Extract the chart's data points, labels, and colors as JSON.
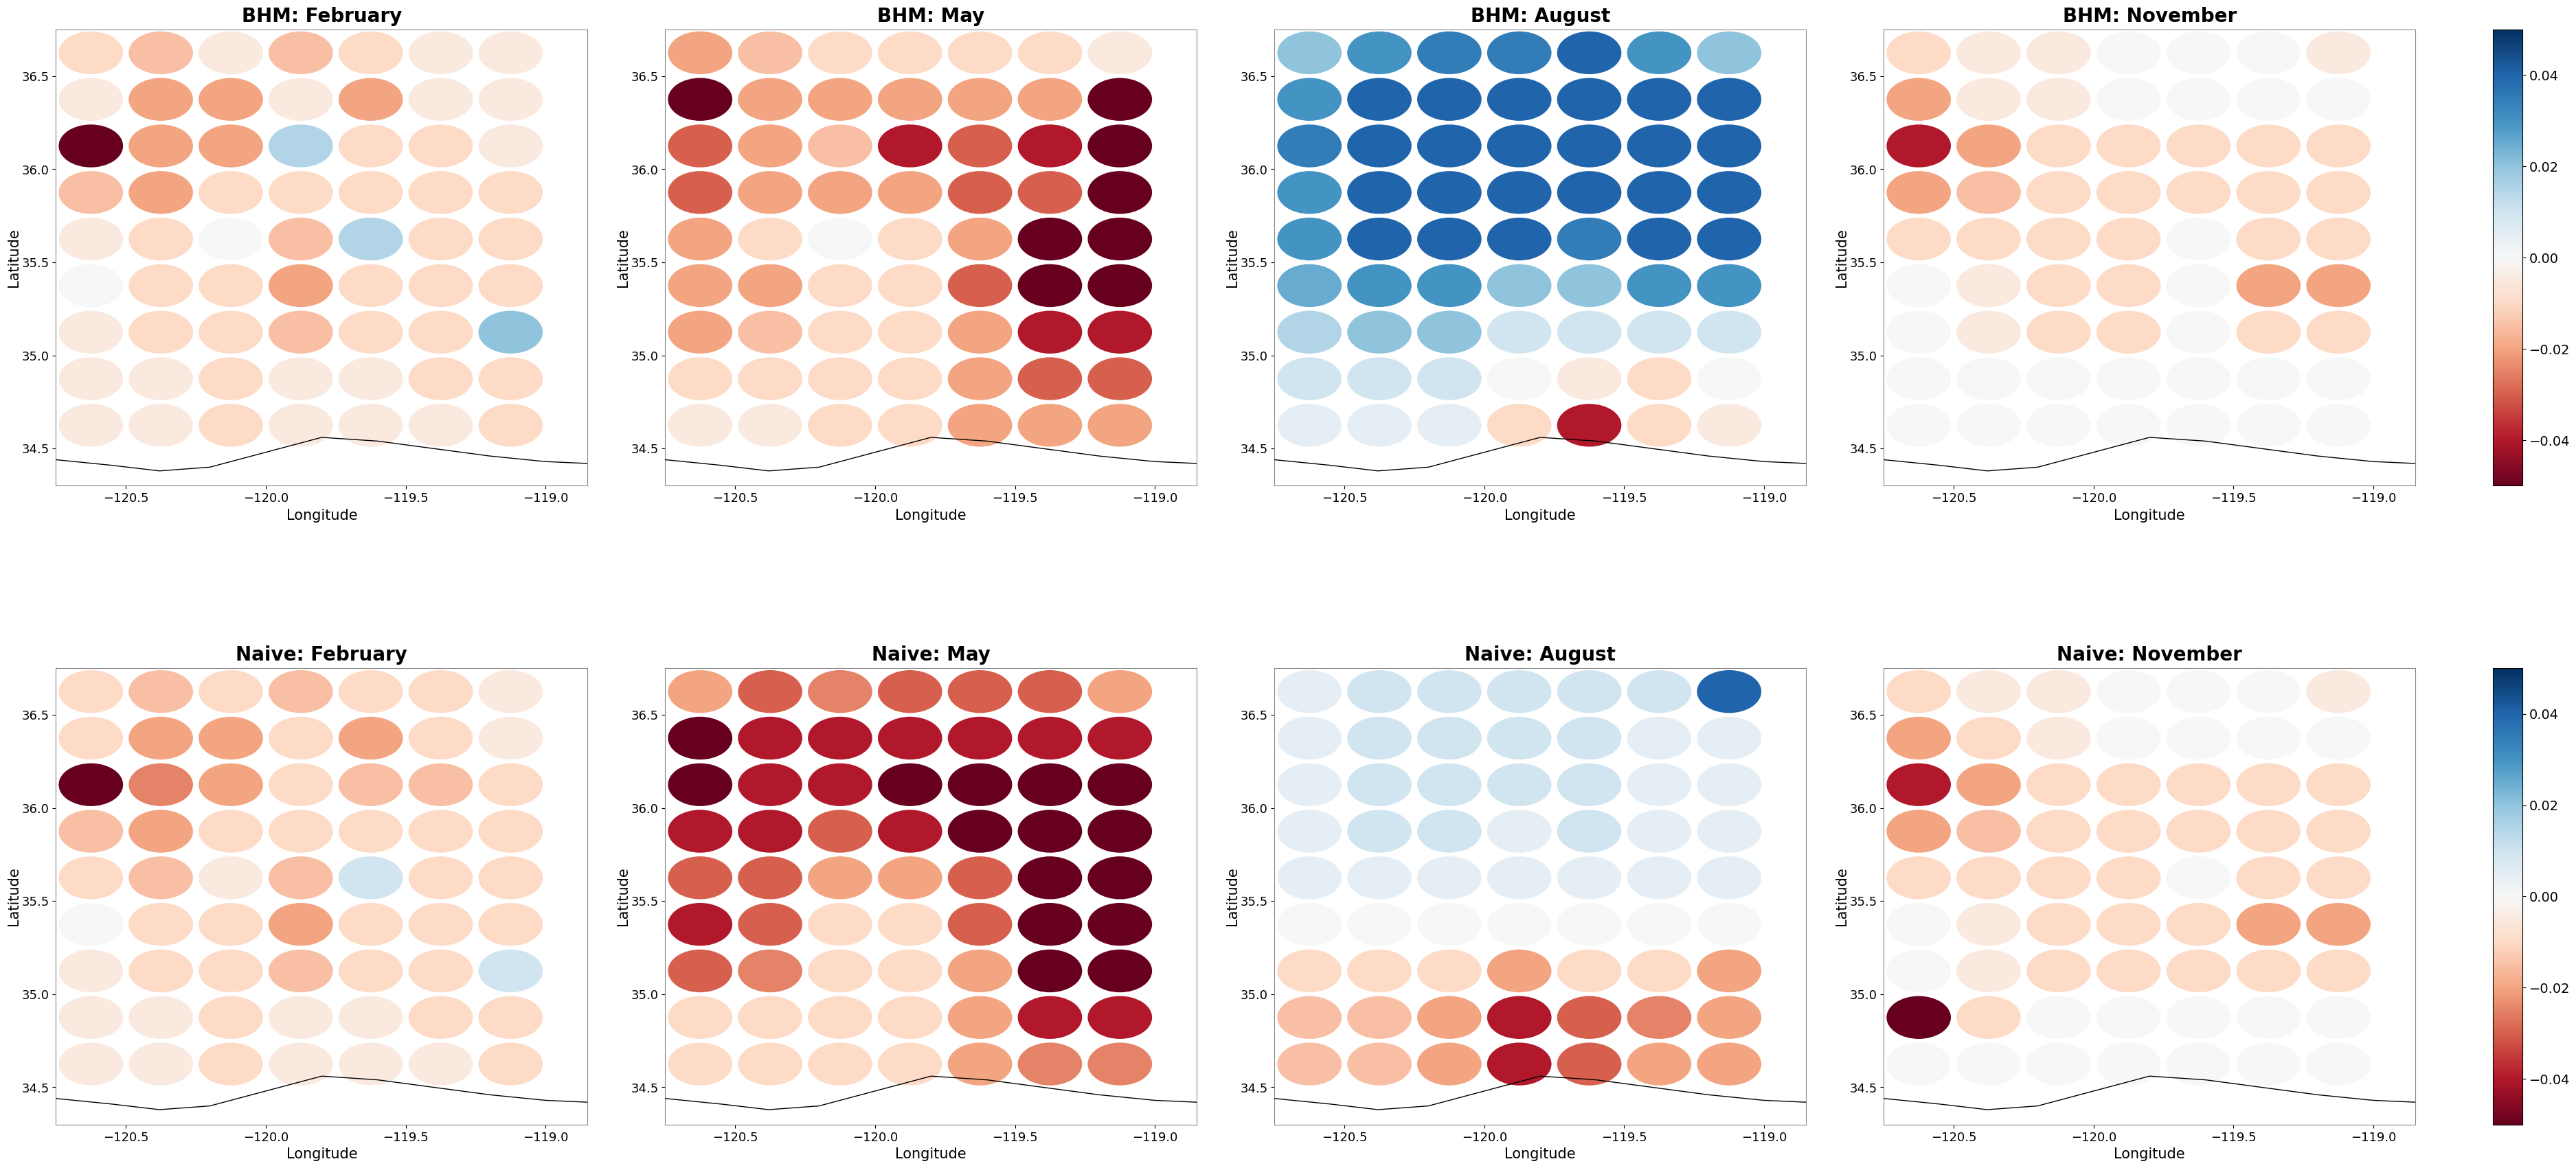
{
  "titles": [
    [
      "BHM: February",
      "BHM: May",
      "BHM: August",
      "BHM: November"
    ],
    [
      "Naive: February",
      "Naive: May",
      "Naive: August",
      "Naive: November"
    ]
  ],
  "lon_range": [
    -120.75,
    -118.85
  ],
  "lat_range": [
    34.3,
    36.75
  ],
  "lon_ticks": [
    -120.5,
    -120.0,
    -119.5,
    -119.0
  ],
  "lat_ticks": [
    34.5,
    35.0,
    35.5,
    36.0,
    36.5
  ],
  "xlabel": "Longitude",
  "ylabel": "Latitude",
  "vmin": -0.05,
  "vmax": 0.05,
  "cbar_ticks": [
    -0.04,
    -0.02,
    0.0,
    0.02,
    0.04
  ],
  "title_fontsize": 20,
  "label_fontsize": 15,
  "tick_fontsize": 13,
  "cbar_fontsize": 14,
  "coastline_x": [
    -120.75,
    -120.55,
    -120.38,
    -120.2,
    -120.0,
    -119.8,
    -119.6,
    -119.4,
    -119.2,
    -119.0,
    -118.85
  ],
  "coastline_y": [
    34.44,
    34.41,
    34.38,
    34.4,
    34.48,
    34.56,
    34.54,
    34.5,
    34.46,
    34.43,
    34.42
  ],
  "lons": [
    -120.625,
    -120.375,
    -120.125,
    -119.875,
    -119.625,
    -119.375,
    -119.125
  ],
  "lats": [
    36.625,
    36.375,
    36.125,
    35.875,
    35.625,
    35.375,
    35.125,
    34.875,
    34.625
  ],
  "bhm_feb": [
    [
      -0.01,
      -0.015,
      -0.005,
      -0.015,
      -0.01,
      -0.005,
      -0.005
    ],
    [
      -0.005,
      -0.02,
      -0.02,
      -0.005,
      -0.02,
      -0.005,
      -0.005
    ],
    [
      -0.05,
      -0.02,
      -0.02,
      0.015,
      -0.01,
      -0.01,
      -0.005
    ],
    [
      -0.015,
      -0.02,
      -0.01,
      -0.01,
      -0.01,
      -0.01,
      -0.01
    ],
    [
      -0.005,
      -0.01,
      0.0,
      -0.015,
      0.015,
      -0.01,
      -0.01
    ],
    [
      0.0,
      -0.01,
      -0.01,
      -0.02,
      -0.01,
      -0.01,
      -0.01
    ],
    [
      -0.005,
      -0.01,
      -0.01,
      -0.015,
      -0.01,
      -0.01,
      0.02
    ],
    [
      -0.005,
      -0.005,
      -0.01,
      -0.005,
      -0.005,
      -0.01,
      -0.01
    ],
    [
      -0.005,
      -0.005,
      -0.01,
      -0.005,
      -0.005,
      -0.005,
      -0.01
    ]
  ],
  "bhm_may": [
    [
      -0.02,
      -0.015,
      -0.01,
      -0.01,
      -0.01,
      -0.01,
      -0.005
    ],
    [
      -0.05,
      -0.02,
      -0.02,
      -0.02,
      -0.02,
      -0.02,
      -0.05
    ],
    [
      -0.03,
      -0.02,
      -0.015,
      -0.04,
      -0.03,
      -0.04,
      -0.06
    ],
    [
      -0.03,
      -0.02,
      -0.02,
      -0.02,
      -0.03,
      -0.03,
      -0.06
    ],
    [
      -0.02,
      -0.01,
      0.0,
      -0.01,
      -0.02,
      -0.05,
      -0.05
    ],
    [
      -0.02,
      -0.02,
      -0.01,
      -0.01,
      -0.03,
      -0.06,
      -0.06
    ],
    [
      -0.02,
      -0.015,
      -0.01,
      -0.01,
      -0.02,
      -0.04,
      -0.04
    ],
    [
      -0.01,
      -0.01,
      -0.01,
      -0.01,
      -0.02,
      -0.03,
      -0.03
    ],
    [
      -0.005,
      -0.005,
      -0.01,
      -0.01,
      -0.02,
      -0.02,
      -0.02
    ]
  ],
  "bhm_aug": [
    [
      0.02,
      0.03,
      0.035,
      0.035,
      0.04,
      0.03,
      0.02
    ],
    [
      0.03,
      0.04,
      0.04,
      0.04,
      0.04,
      0.04,
      0.04
    ],
    [
      0.035,
      0.04,
      0.04,
      0.04,
      0.04,
      0.04,
      0.04
    ],
    [
      0.03,
      0.04,
      0.04,
      0.04,
      0.04,
      0.04,
      0.04
    ],
    [
      0.03,
      0.04,
      0.04,
      0.04,
      0.035,
      0.04,
      0.04
    ],
    [
      0.025,
      0.03,
      0.03,
      0.02,
      0.02,
      0.03,
      0.03
    ],
    [
      0.015,
      0.02,
      0.02,
      0.01,
      0.01,
      0.01,
      0.01
    ],
    [
      0.01,
      0.01,
      0.01,
      0.0,
      -0.005,
      -0.01,
      0.0
    ],
    [
      0.005,
      0.005,
      0.005,
      -0.01,
      -0.04,
      -0.01,
      -0.005
    ]
  ],
  "bhm_nov": [
    [
      -0.01,
      -0.005,
      -0.005,
      0.0,
      0.0,
      0.0,
      -0.005
    ],
    [
      -0.02,
      -0.005,
      -0.005,
      0.0,
      0.0,
      0.0,
      0.0
    ],
    [
      -0.04,
      -0.02,
      -0.01,
      -0.01,
      -0.01,
      -0.01,
      -0.01
    ],
    [
      -0.02,
      -0.015,
      -0.01,
      -0.01,
      -0.01,
      -0.01,
      -0.01
    ],
    [
      -0.01,
      -0.01,
      -0.01,
      -0.01,
      0.0,
      -0.01,
      -0.01
    ],
    [
      0.0,
      -0.005,
      -0.01,
      -0.01,
      0.0,
      -0.02,
      -0.02
    ],
    [
      0.0,
      -0.005,
      -0.01,
      -0.01,
      0.0,
      -0.01,
      -0.01
    ],
    [
      0.0,
      0.0,
      0.0,
      0.0,
      0.0,
      0.0,
      0.0
    ],
    [
      0.0,
      0.0,
      0.0,
      0.0,
      0.0,
      0.0,
      0.0
    ]
  ],
  "naive_feb": [
    [
      -0.01,
      -0.015,
      -0.01,
      -0.015,
      -0.01,
      -0.01,
      -0.005
    ],
    [
      -0.01,
      -0.02,
      -0.02,
      -0.01,
      -0.02,
      -0.01,
      -0.005
    ],
    [
      -0.05,
      -0.025,
      -0.02,
      -0.01,
      -0.015,
      -0.015,
      -0.01
    ],
    [
      -0.015,
      -0.02,
      -0.01,
      -0.01,
      -0.01,
      -0.01,
      -0.01
    ],
    [
      -0.01,
      -0.015,
      -0.005,
      -0.015,
      0.01,
      -0.01,
      -0.01
    ],
    [
      0.0,
      -0.01,
      -0.01,
      -0.02,
      -0.01,
      -0.01,
      -0.01
    ],
    [
      -0.005,
      -0.01,
      -0.01,
      -0.015,
      -0.01,
      -0.01,
      0.01
    ],
    [
      -0.005,
      -0.005,
      -0.01,
      -0.005,
      -0.005,
      -0.01,
      -0.01
    ],
    [
      -0.005,
      -0.005,
      -0.01,
      -0.005,
      -0.005,
      -0.005,
      -0.01
    ]
  ],
  "naive_may": [
    [
      -0.02,
      -0.03,
      -0.025,
      -0.03,
      -0.03,
      -0.03,
      -0.02
    ],
    [
      -0.06,
      -0.04,
      -0.04,
      -0.04,
      -0.04,
      -0.04,
      -0.04
    ],
    [
      -0.05,
      -0.04,
      -0.04,
      -0.05,
      -0.05,
      -0.05,
      -0.05
    ],
    [
      -0.04,
      -0.04,
      -0.03,
      -0.04,
      -0.05,
      -0.06,
      -0.06
    ],
    [
      -0.03,
      -0.03,
      -0.02,
      -0.02,
      -0.03,
      -0.06,
      -0.06
    ],
    [
      -0.04,
      -0.03,
      -0.01,
      -0.01,
      -0.03,
      -0.06,
      -0.06
    ],
    [
      -0.03,
      -0.025,
      -0.01,
      -0.01,
      -0.02,
      -0.05,
      -0.05
    ],
    [
      -0.01,
      -0.01,
      -0.01,
      -0.01,
      -0.02,
      -0.04,
      -0.04
    ],
    [
      -0.01,
      -0.01,
      -0.01,
      -0.01,
      -0.02,
      -0.025,
      -0.025
    ]
  ],
  "naive_aug": [
    [
      0.005,
      0.01,
      0.01,
      0.01,
      0.01,
      0.01,
      0.04
    ],
    [
      0.005,
      0.01,
      0.01,
      0.01,
      0.01,
      0.005,
      0.005
    ],
    [
      0.005,
      0.01,
      0.01,
      0.01,
      0.01,
      0.005,
      0.005
    ],
    [
      0.005,
      0.01,
      0.01,
      0.005,
      0.01,
      0.005,
      0.005
    ],
    [
      0.005,
      0.005,
      0.005,
      0.005,
      0.005,
      0.005,
      0.005
    ],
    [
      0.0,
      0.0,
      0.0,
      0.0,
      0.0,
      0.0,
      0.0
    ],
    [
      -0.01,
      -0.01,
      -0.01,
      -0.02,
      -0.01,
      -0.01,
      -0.02
    ],
    [
      -0.015,
      -0.015,
      -0.02,
      -0.04,
      -0.03,
      -0.025,
      -0.02
    ],
    [
      -0.015,
      -0.015,
      -0.02,
      -0.04,
      -0.03,
      -0.02,
      -0.02
    ]
  ],
  "naive_nov": [
    [
      -0.01,
      -0.005,
      -0.005,
      0.0,
      0.0,
      0.0,
      -0.005
    ],
    [
      -0.02,
      -0.01,
      -0.005,
      0.0,
      0.0,
      0.0,
      0.0
    ],
    [
      -0.04,
      -0.02,
      -0.01,
      -0.01,
      -0.01,
      -0.01,
      -0.01
    ],
    [
      -0.02,
      -0.015,
      -0.01,
      -0.01,
      -0.01,
      -0.01,
      -0.01
    ],
    [
      -0.01,
      -0.01,
      -0.01,
      -0.01,
      0.0,
      -0.01,
      -0.01
    ],
    [
      0.0,
      -0.005,
      -0.01,
      -0.01,
      -0.01,
      -0.02,
      -0.02
    ],
    [
      0.0,
      -0.005,
      -0.01,
      -0.01,
      -0.01,
      -0.01,
      -0.01
    ],
    [
      -0.05,
      -0.01,
      0.0,
      0.0,
      0.0,
      0.0,
      0.0
    ],
    [
      0.0,
      0.0,
      0.0,
      0.0,
      0.0,
      0.0,
      0.0
    ]
  ]
}
